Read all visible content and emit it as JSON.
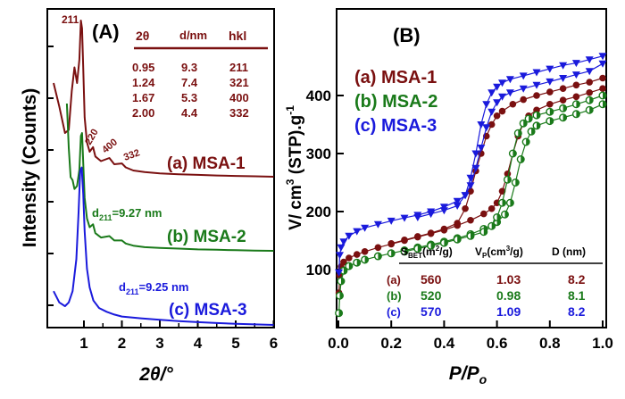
{
  "chart_data": [
    {
      "type": "line",
      "panel_label": "(A)",
      "xlabel": "2θ/°",
      "ylabel": "Intensity (Counts)",
      "xlim": [
        0.2,
        6
      ],
      "x_ticks": [
        "1",
        "2",
        "3",
        "4",
        "5",
        "6"
      ],
      "y_ticks_labeled": false,
      "colors": {
        "MSA-1": "#7a1010",
        "MSA-2": "#1a7a1a",
        "MSA-3": "#1a1adc"
      },
      "series": [
        {
          "name": "MSA-1",
          "label": "(a) MSA-1",
          "x": [
            0.2,
            0.35,
            0.5,
            0.6,
            0.68,
            0.75,
            0.82,
            0.88,
            0.92,
            0.95,
            0.98,
            1.02,
            1.08,
            1.15,
            1.24,
            1.3,
            1.45,
            1.67,
            1.8,
            2.0,
            2.1,
            2.3,
            2.6,
            3.0,
            3.5,
            4.0,
            4.5,
            5.0,
            5.5,
            6.0
          ],
          "y": [
            0.6,
            0.45,
            0.28,
            0.3,
            0.55,
            0.7,
            0.6,
            0.75,
            1.0,
            0.95,
            0.7,
            0.38,
            0.22,
            0.16,
            0.19,
            0.13,
            0.1,
            0.12,
            0.08,
            0.085,
            0.06,
            0.04,
            0.03,
            0.022,
            0.016,
            0.012,
            0.008,
            0.005,
            0.003,
            0.0
          ]
        },
        {
          "name": "MSA-2",
          "label": "(b) MSA-2",
          "x": [
            0.55,
            0.6,
            0.65,
            0.7,
            0.75,
            0.82,
            0.88,
            0.92,
            0.95,
            0.98,
            1.02,
            1.08,
            1.15,
            1.24,
            1.3,
            1.45,
            1.67,
            1.8,
            2.0,
            2.1,
            2.3,
            2.6,
            3.0,
            3.5,
            4.0,
            4.5,
            5.0,
            5.5,
            6.0
          ],
          "y": [
            1.0,
            0.7,
            0.5,
            0.48,
            0.42,
            0.44,
            0.55,
            0.78,
            0.8,
            0.6,
            0.36,
            0.22,
            0.16,
            0.18,
            0.12,
            0.09,
            0.1,
            0.07,
            0.07,
            0.05,
            0.035,
            0.025,
            0.02,
            0.015,
            0.01,
            0.007,
            0.004,
            0.002,
            0.0
          ]
        },
        {
          "name": "MSA-3",
          "label": "(c) MSA-3",
          "x": [
            0.2,
            0.35,
            0.5,
            0.6,
            0.7,
            0.8,
            0.86,
            0.9,
            0.94,
            0.98,
            1.02,
            1.08,
            1.15,
            1.25,
            1.4,
            1.6,
            1.8,
            2.0,
            2.5,
            3.0,
            3.5,
            4.0,
            4.5,
            5.0,
            5.5,
            6.0
          ],
          "y": [
            0.18,
            0.12,
            0.1,
            0.12,
            0.18,
            0.35,
            0.6,
            0.82,
            0.84,
            0.7,
            0.5,
            0.3,
            0.2,
            0.13,
            0.09,
            0.07,
            0.055,
            0.045,
            0.035,
            0.027,
            0.02,
            0.015,
            0.01,
            0.006,
            0.003,
            0.0
          ]
        }
      ],
      "annotations": {
        "peak_labels": [
          "211",
          "220",
          "400",
          "332"
        ],
        "d_msa2": "d",
        "d_msa2_sub": "211",
        "d_msa2_val": "=9.27 nm",
        "d_msa3": "d",
        "d_msa3_sub": "211",
        "d_msa3_val": "=9.25 nm"
      },
      "table": {
        "headers": [
          "2θ",
          "d/nm",
          "hkl"
        ],
        "rows": [
          [
            "0.95",
            "9.3",
            "211"
          ],
          [
            "1.24",
            "7.4",
            "321"
          ],
          [
            "1.67",
            "5.3",
            "400"
          ],
          [
            "2.00",
            "4.4",
            "332"
          ]
        ]
      }
    },
    {
      "type": "scatter",
      "panel_label": "(B)",
      "xlabel_main": "P/P",
      "xlabel_sub": "o",
      "ylabel_main": "V/ cm",
      "ylabel_sup": "3",
      "ylabel_rest": " (STP).g",
      "ylabel_sup2": "-1",
      "xlim": [
        0,
        1
      ],
      "ylim": [
        0,
        480
      ],
      "x_ticks": [
        "0.0",
        "0.2",
        "0.4",
        "0.6",
        "0.8",
        "1.0"
      ],
      "y_ticks": [
        "100",
        "200",
        "300",
        "400"
      ],
      "series": [
        {
          "name": "MSA-1",
          "label": "(a) MSA-1",
          "marker": "circle",
          "adsorption": {
            "x": [
              0.002,
              0.005,
              0.01,
              0.02,
              0.04,
              0.07,
              0.1,
              0.15,
              0.2,
              0.25,
              0.3,
              0.35,
              0.4,
              0.45,
              0.5,
              0.55,
              0.58,
              0.6,
              0.62,
              0.64,
              0.66,
              0.68,
              0.7,
              0.72,
              0.75,
              0.8,
              0.85,
              0.9,
              0.95,
              1.0
            ],
            "y": [
              60,
              90,
              105,
              113,
              120,
              126,
              131,
              138,
              144,
              150,
              156,
              162,
              168,
              176,
              185,
              196,
              205,
              215,
              235,
              265,
              300,
              330,
              352,
              365,
              375,
              385,
              392,
              398,
              405,
              412
            ]
          },
          "desorption": {
            "x": [
              1.0,
              0.95,
              0.9,
              0.85,
              0.8,
              0.75,
              0.7,
              0.66,
              0.62,
              0.6,
              0.58,
              0.56,
              0.54,
              0.52,
              0.5,
              0.48,
              0.45,
              0.4,
              0.35,
              0.3,
              0.25,
              0.2
            ],
            "y": [
              430,
              423,
              418,
              412,
              406,
              400,
              393,
              385,
              373,
              365,
              350,
              330,
              300,
              270,
              235,
              205,
              180,
              170,
              163,
              157,
              151,
              145
            ]
          }
        },
        {
          "name": "MSA-2",
          "label": "(b) MSA-2",
          "marker": "half-circle",
          "adsorption": {
            "x": [
              0.002,
              0.005,
              0.01,
              0.02,
              0.04,
              0.07,
              0.1,
              0.15,
              0.2,
              0.25,
              0.3,
              0.35,
              0.4,
              0.45,
              0.5,
              0.55,
              0.6,
              0.63,
              0.65,
              0.67,
              0.69,
              0.71,
              0.73,
              0.75,
              0.8,
              0.85,
              0.9,
              0.95,
              1.0
            ],
            "y": [
              25,
              55,
              80,
              98,
              106,
              112,
              117,
              123,
              128,
              133,
              138,
              143,
              148,
              154,
              161,
              170,
              182,
              195,
              215,
              250,
              290,
              320,
              338,
              348,
              356,
              362,
              368,
              375,
              385
            ]
          },
          "desorption": {
            "x": [
              1.0,
              0.95,
              0.9,
              0.85,
              0.8,
              0.75,
              0.72,
              0.7,
              0.68,
              0.66,
              0.64,
              0.62,
              0.6,
              0.58,
              0.55,
              0.5,
              0.45,
              0.4,
              0.35,
              0.3,
              0.25
            ],
            "y": [
              400,
              392,
              385,
              378,
              372,
              366,
              360,
              352,
              335,
              300,
              255,
              215,
              190,
              175,
              165,
              158,
              152,
              146,
              141,
              136,
              131
            ]
          }
        },
        {
          "name": "MSA-3",
          "label": "(c) MSA-3",
          "marker": "triangle",
          "adsorption": {
            "x": [
              0.002,
              0.005,
              0.01,
              0.02,
              0.04,
              0.07,
              0.1,
              0.15,
              0.2,
              0.25,
              0.3,
              0.35,
              0.4,
              0.45,
              0.48,
              0.5,
              0.52,
              0.54,
              0.56,
              0.58,
              0.6,
              0.62,
              0.65,
              0.7,
              0.75,
              0.8,
              0.85,
              0.9,
              0.95,
              1.0
            ],
            "y": [
              95,
              125,
              138,
              148,
              158,
              166,
              172,
              178,
              184,
              189,
              194,
              200,
              208,
              218,
              228,
              245,
              275,
              310,
              345,
              372,
              388,
              398,
              405,
              412,
              418,
              424,
              430,
              436,
              442,
              455
            ]
          },
          "desorption": {
            "x": [
              1.0,
              0.95,
              0.9,
              0.85,
              0.8,
              0.75,
              0.7,
              0.65,
              0.62,
              0.6,
              0.58,
              0.56,
              0.54,
              0.52,
              0.5,
              0.48,
              0.45,
              0.4,
              0.35,
              0.3
            ],
            "y": [
              468,
              462,
              456,
              452,
              446,
              440,
              434,
              428,
              422,
              415,
              405,
              385,
              350,
              300,
              258,
              228,
              210,
              202,
              196,
              190
            ]
          }
        }
      ],
      "table": {
        "header_s": "S",
        "header_s_sub": "BET",
        "header_s_unit": "(m",
        "header_s_sup": "2",
        "header_s_end": "/g)",
        "header_v": "V",
        "header_v_sub": "P",
        "header_v_unit": "(cm",
        "header_v_sup": "3",
        "header_v_end": "/g)",
        "header_d": "D (nm)",
        "rows": [
          {
            "label": "(a)",
            "sbet": "560",
            "vp": "1.03",
            "d": "8.2"
          },
          {
            "label": "(b)",
            "sbet": "520",
            "vp": "0.98",
            "d": "8.1"
          },
          {
            "label": "(c)",
            "sbet": "570",
            "vp": "1.09",
            "d": "8.2"
          }
        ]
      }
    }
  ]
}
